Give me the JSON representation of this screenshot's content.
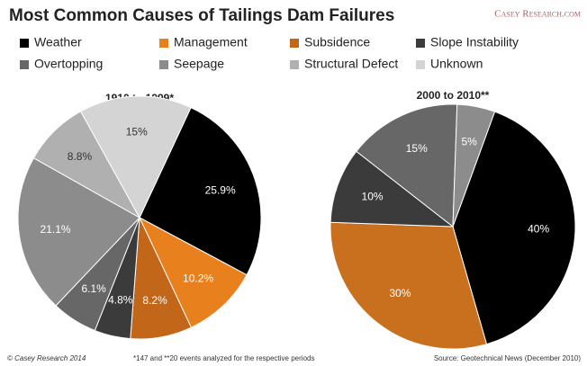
{
  "title": "Most Common Causes of Tailings Dam Failures",
  "logo": "Casey Research.com",
  "legend": {
    "names": [
      "Weather",
      "Management",
      "Subsidence",
      "Slope Instability",
      "Overtopping",
      "Seepage",
      "Structural Defect",
      "Unknown"
    ],
    "colors": [
      "#000000",
      "#e8801e",
      "#c2661a",
      "#3b3b3b",
      "#676767",
      "#8c8c8c",
      "#b0b0b0",
      "#d4d4d4"
    ]
  },
  "chart_data": [
    {
      "type": "pie",
      "title": "1910 to 1999*",
      "categories": [
        "Weather",
        "Management",
        "Subsidence",
        "Slope Instability",
        "Overtopping",
        "Seepage",
        "Structural Defect",
        "Unknown"
      ],
      "values": [
        25.9,
        10.2,
        8.2,
        4.8,
        6.1,
        21.1,
        8.8,
        15
      ],
      "value_labels": [
        "25.9%",
        "10.2%",
        "8.2%",
        "4.8%",
        "6.1%",
        "21.1%",
        "8.8%",
        "15%"
      ],
      "colors": [
        "#000000",
        "#e8801e",
        "#c2661a",
        "#3b3b3b",
        "#676767",
        "#8c8c8c",
        "#b0b0b0",
        "#d4d4d4"
      ]
    },
    {
      "type": "pie",
      "title": "2000 to 2010**",
      "categories": [
        "Weather",
        "Management",
        "Slope Instability",
        "Overtopping",
        "Seepage"
      ],
      "values": [
        40,
        30,
        10,
        15,
        5
      ],
      "value_labels": [
        "40%",
        "30%",
        "10%",
        "15%",
        "5%"
      ],
      "colors": [
        "#000000",
        "#c8701e",
        "#3b3b3b",
        "#676767",
        "#8c8c8c"
      ]
    }
  ],
  "footer": {
    "copyright": "© Casey Research 2014",
    "note": "*147 and **20  events analyzed for the respective periods",
    "source": "Source: Geotechnical News (December 2010)"
  }
}
